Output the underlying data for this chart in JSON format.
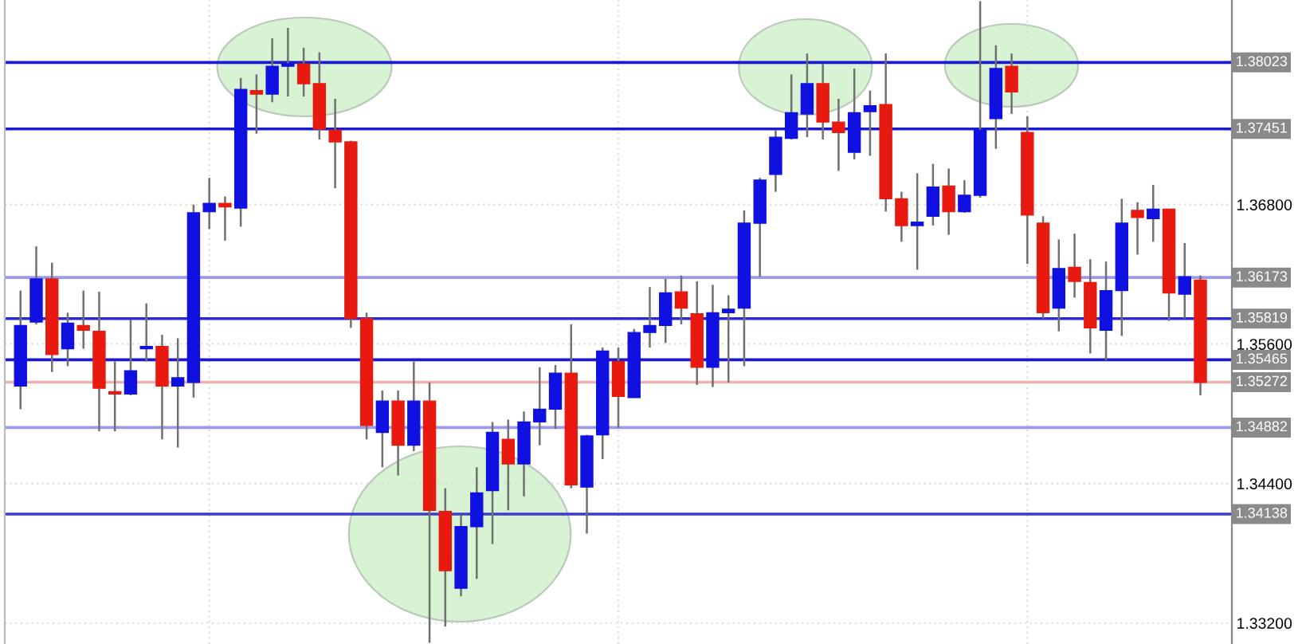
{
  "chart_data": {
    "type": "candlestick",
    "categories": [
      null,
      null,
      null,
      null,
      null,
      null,
      null,
      null,
      null,
      null,
      null,
      null,
      null,
      null,
      null,
      null,
      null,
      null,
      null,
      null,
      null,
      null,
      null,
      null,
      null,
      null,
      null,
      null,
      null,
      null,
      null,
      null,
      null,
      null,
      null,
      null,
      null,
      null,
      null,
      null,
      null,
      null,
      null,
      null,
      null,
      null,
      null,
      null,
      null,
      null,
      null,
      null,
      null,
      null,
      null,
      null,
      null,
      null,
      null,
      null,
      null,
      null,
      null,
      null,
      null,
      null,
      null,
      null,
      null,
      null,
      null,
      null,
      null,
      null,
      null,
      null
    ],
    "ohlc": [
      [
        1.3524,
        1.3606,
        1.3504,
        1.3576
      ],
      [
        1.3579,
        1.3644,
        1.3577,
        1.3616
      ],
      [
        1.3616,
        1.363,
        1.3536,
        1.3551
      ],
      [
        1.3556,
        1.3587,
        1.3541,
        1.3578
      ],
      [
        1.3576,
        1.3606,
        1.3556,
        1.3572
      ],
      [
        1.3571,
        1.3605,
        1.3485,
        1.3522
      ],
      [
        1.3519,
        1.3545,
        1.3485,
        1.3517
      ],
      [
        1.3517,
        1.3581,
        1.3516,
        1.3537
      ],
      [
        1.3556,
        1.3595,
        1.3545,
        1.3558
      ],
      [
        1.3558,
        1.3568,
        1.3478,
        1.3524
      ],
      [
        1.3524,
        1.3565,
        1.3471,
        1.3531
      ],
      [
        1.3527,
        1.368,
        1.3514,
        1.3673
      ],
      [
        1.3674,
        1.3703,
        1.3659,
        1.3681
      ],
      [
        1.3681,
        1.3687,
        1.3649,
        1.3678
      ],
      [
        1.3677,
        1.3789,
        1.3661,
        1.3779
      ],
      [
        1.3778,
        1.3792,
        1.3741,
        1.3775
      ],
      [
        1.3775,
        1.3823,
        1.3768,
        1.3799
      ],
      [
        1.3799,
        1.3832,
        1.3773,
        1.3801
      ],
      [
        1.3801,
        1.3815,
        1.3773,
        1.3784
      ],
      [
        1.3784,
        1.3811,
        1.3736,
        1.3745
      ],
      [
        1.3744,
        1.3771,
        1.3694,
        1.3734
      ],
      [
        1.3734,
        1.3735,
        1.3574,
        1.3582
      ],
      [
        1.3582,
        1.3587,
        1.3478,
        1.349
      ],
      [
        1.3484,
        1.352,
        1.3454,
        1.3511
      ],
      [
        1.3511,
        1.352,
        1.3447,
        1.3473
      ],
      [
        1.3473,
        1.3545,
        1.3468,
        1.3511
      ],
      [
        1.3511,
        1.3527,
        1.3303,
        1.3417
      ],
      [
        1.3416,
        1.3436,
        1.3317,
        1.3365
      ],
      [
        1.335,
        1.3413,
        1.3343,
        1.3403
      ],
      [
        1.3403,
        1.3454,
        1.3358,
        1.3432
      ],
      [
        1.3434,
        1.3493,
        1.3388,
        1.3484
      ],
      [
        1.3478,
        1.3495,
        1.3417,
        1.3457
      ],
      [
        1.3457,
        1.3502,
        1.3429,
        1.3493
      ],
      [
        1.3493,
        1.354,
        1.3473,
        1.3504
      ],
      [
        1.3504,
        1.3542,
        1.3487,
        1.3535
      ],
      [
        1.3535,
        1.3577,
        1.3436,
        1.3439
      ],
      [
        1.3437,
        1.3482,
        1.3397,
        1.3481
      ],
      [
        1.3482,
        1.3557,
        1.3461,
        1.3554
      ],
      [
        1.3545,
        1.3557,
        1.3488,
        1.3515
      ],
      [
        1.3514,
        1.3573,
        1.3514,
        1.357
      ],
      [
        1.357,
        1.3609,
        1.3557,
        1.3576
      ],
      [
        1.3576,
        1.3616,
        1.3561,
        1.3604
      ],
      [
        1.3605,
        1.3619,
        1.3577,
        1.3591
      ],
      [
        1.3586,
        1.3614,
        1.3525,
        1.354
      ],
      [
        1.354,
        1.3611,
        1.3523,
        1.3587
      ],
      [
        1.3587,
        1.3602,
        1.3527,
        1.359
      ],
      [
        1.3591,
        1.3675,
        1.3541,
        1.3664
      ],
      [
        1.3664,
        1.3703,
        1.3618,
        1.3701
      ],
      [
        1.3706,
        1.3744,
        1.3691,
        1.3738
      ],
      [
        1.3737,
        1.3792,
        1.3736,
        1.3759
      ],
      [
        1.3758,
        1.381,
        1.3738,
        1.3784
      ],
      [
        1.3784,
        1.3801,
        1.3736,
        1.3751
      ],
      [
        1.3751,
        1.3771,
        1.3709,
        1.3742
      ],
      [
        1.3725,
        1.3797,
        1.3719,
        1.3759
      ],
      [
        1.376,
        1.3778,
        1.3722,
        1.3765
      ],
      [
        1.3766,
        1.381,
        1.3674,
        1.3685
      ],
      [
        1.3685,
        1.3691,
        1.3648,
        1.3662
      ],
      [
        1.3662,
        1.3707,
        1.3624,
        1.3665
      ],
      [
        1.367,
        1.3715,
        1.3662,
        1.3695
      ],
      [
        1.3696,
        1.3711,
        1.3654,
        1.3674
      ],
      [
        1.3674,
        1.3701,
        1.3673,
        1.3688
      ],
      [
        1.3688,
        1.3855,
        1.3686,
        1.3744
      ],
      [
        1.3754,
        1.3817,
        1.3728,
        1.3797
      ],
      [
        1.3799,
        1.381,
        1.3758,
        1.3777
      ],
      [
        1.3742,
        1.3756,
        1.3629,
        1.3671
      ],
      [
        1.3664,
        1.367,
        1.3582,
        1.3587
      ],
      [
        1.3591,
        1.365,
        1.3571,
        1.3625
      ],
      [
        1.3626,
        1.3655,
        1.36,
        1.3614
      ],
      [
        1.3613,
        1.3633,
        1.3552,
        1.3574
      ],
      [
        1.3572,
        1.3631,
        1.3546,
        1.3606
      ],
      [
        1.3606,
        1.3685,
        1.3567,
        1.3664
      ],
      [
        1.3675,
        1.3682,
        1.3637,
        1.3669
      ],
      [
        1.3668,
        1.3697,
        1.3648,
        1.3676
      ],
      [
        1.3676,
        1.3676,
        1.358,
        1.3604
      ],
      [
        1.3603,
        1.3647,
        1.3582,
        1.3618
      ],
      [
        1.3615,
        1.3619,
        1.3516,
        1.3527
      ]
    ],
    "colors": [
      "#1010e0",
      "#1010e0",
      "#e81a10",
      "#1010e0",
      "#e81a10",
      "#e81a10",
      "#e81a10",
      "#1010e0",
      "#1010e0",
      "#e81a10",
      "#1010e0",
      "#1010e0",
      "#1010e0",
      "#e81a10",
      "#1010e0",
      "#e81a10",
      "#1010e0",
      "#1010e0",
      "#e81a10",
      "#e81a10",
      "#e81a10",
      "#e81a10",
      "#e81a10",
      "#1010e0",
      "#e81a10",
      "#1010e0",
      "#e81a10",
      "#e81a10",
      "#1010e0",
      "#1010e0",
      "#1010e0",
      "#e81a10",
      "#1010e0",
      "#1010e0",
      "#1010e0",
      "#e81a10",
      "#1010e0",
      "#1010e0",
      "#e81a10",
      "#1010e0",
      "#1010e0",
      "#1010e0",
      "#e81a10",
      "#e81a10",
      "#1010e0",
      "#1010e0",
      "#1010e0",
      "#1010e0",
      "#1010e0",
      "#1010e0",
      "#1010e0",
      "#e81a10",
      "#e81a10",
      "#1010e0",
      "#1010e0",
      "#e81a10",
      "#e81a10",
      "#1010e0",
      "#1010e0",
      "#e81a10",
      "#1010e0",
      "#1010e0",
      "#1010e0",
      "#e81a10",
      "#e81a10",
      "#e81a10",
      "#1010e0",
      "#e81a10",
      "#e81a10",
      "#1010e0",
      "#1010e0",
      "#e81a10",
      "#1010e0",
      "#e81a10",
      "#1010e0",
      "#e81a10"
    ],
    "ylim": [
      1.3302,
      1.3856
    ],
    "yticks": [
      {
        "value": 1.368,
        "label": "1.36800"
      },
      {
        "value": 1.356,
        "label": "1.35600"
      },
      {
        "value": 1.344,
        "label": "1.34400"
      },
      {
        "value": 1.332,
        "label": "1.33200"
      }
    ],
    "ref_lines": [
      {
        "axis": "y",
        "value": 1.38023,
        "label": "1.38023",
        "color": "#1a1ad0"
      },
      {
        "axis": "y",
        "value": 1.37451,
        "label": "1.37451",
        "color": "#1a1ad0"
      },
      {
        "axis": "y",
        "value": 1.36173,
        "label": "1.36173",
        "color": "#9a9ae8"
      },
      {
        "axis": "y",
        "value": 1.35819,
        "label": "1.35819",
        "color": "#2a2ad0"
      },
      {
        "axis": "y",
        "value": 1.35465,
        "label": "1.35465",
        "color": "#1a1ad0"
      },
      {
        "axis": "y",
        "value": 1.35272,
        "label": "1.35272",
        "color": "#f0b0b0"
      },
      {
        "axis": "y",
        "value": 1.34882,
        "label": "1.34882",
        "color": "#9a9ae8"
      },
      {
        "axis": "y",
        "value": 1.34138,
        "label": "1.34138",
        "color": "#3a3ad0"
      }
    ],
    "grid": true,
    "tick_labels": "y"
  }
}
